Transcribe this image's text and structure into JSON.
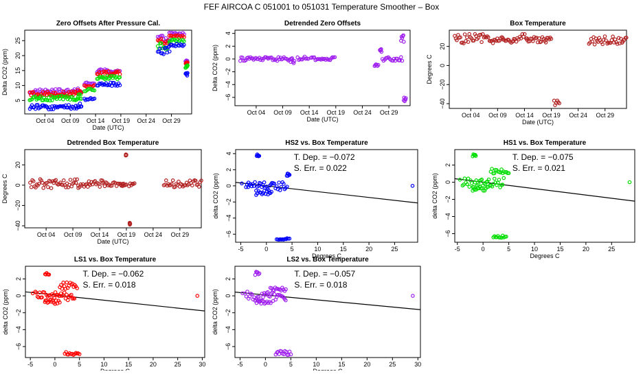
{
  "figure_title": "FEF   AIRCOA C   051001 to 051031   Temperature Smoother – Box",
  "chart_data": [
    {
      "id": "p1",
      "type": "scatter",
      "title": "Zero Offsets After Pressure Cal.",
      "xlabel": "Date (UTC)",
      "ylabel": "Delta CO2 (ppm)",
      "xlim": [
        0,
        33
      ],
      "ylim": [
        0.5,
        28.5
      ],
      "x_ticks": [
        4,
        9,
        14,
        19,
        24,
        29
      ],
      "x_tick_labels": [
        "Oct 04",
        "Oct 09",
        "Oct 14",
        "Oct 19",
        "Oct 24",
        "Oct 29"
      ],
      "y_ticks": [
        5,
        10,
        15,
        20,
        25
      ],
      "series": [
        {
          "name": "LS2",
          "color": "#a020f0",
          "segments": [
            [
              1,
              10.5,
              7.2,
              8.8
            ],
            [
              10.5,
              11.2,
              7.8,
              9.5
            ],
            [
              11.8,
              13.8,
              10.3,
              11
            ],
            [
              14.3,
              18.8,
              14.2,
              15.5
            ],
            [
              26.3,
              28.6,
              24.5,
              26.8
            ],
            [
              28.6,
              31.5,
              26.8,
              27.8
            ],
            [
              31.8,
              32.2,
              17.8,
              18.5
            ]
          ]
        },
        {
          "name": "LS1",
          "color": "#ff0000",
          "segments": [
            [
              1,
              10.5,
              6.5,
              8
            ],
            [
              10.5,
              11.2,
              7,
              8.6
            ],
            [
              11.8,
              13.8,
              9.5,
              10.3
            ],
            [
              14.3,
              18.8,
              13.3,
              14.8
            ],
            [
              26.3,
              28.6,
              23.5,
              25.8
            ],
            [
              28.6,
              31.5,
              25.8,
              26.8
            ],
            [
              31.8,
              32.2,
              17.2,
              17.8
            ]
          ]
        },
        {
          "name": "HS1",
          "color": "#00dd00",
          "segments": [
            [
              1,
              10.5,
              4.8,
              6.5
            ],
            [
              10.5,
              11.2,
              5.5,
              7.2
            ],
            [
              11.8,
              13.8,
              8,
              9
            ],
            [
              14.3,
              18.8,
              12,
              13.2
            ],
            [
              26.3,
              28.6,
              22,
              24.5
            ],
            [
              28.6,
              31.5,
              24.5,
              25.5
            ],
            [
              31.8,
              32.2,
              15.8,
              16.8
            ]
          ]
        },
        {
          "name": "HS2",
          "color": "#0000ff",
          "segments": [
            [
              1,
              10.5,
              2,
              3.5
            ],
            [
              10.5,
              11.2,
              2.5,
              4.2
            ],
            [
              11.8,
              13.8,
              5,
              6
            ],
            [
              14.3,
              18.8,
              9.8,
              11
            ],
            [
              26.3,
              28.6,
              20,
              23
            ],
            [
              28.6,
              31.5,
              23,
              24
            ],
            [
              31.8,
              32.2,
              13.2,
              14.2
            ]
          ]
        }
      ]
    },
    {
      "id": "p2",
      "type": "scatter",
      "title": "Detrended Zero Offsets",
      "xlabel": "Date (UTC)",
      "ylabel": "Delta CO2 (ppm)",
      "xlim": [
        0,
        33
      ],
      "ylim": [
        -7.3,
        4.5
      ],
      "x_ticks": [
        4,
        9,
        14,
        19,
        24,
        29
      ],
      "x_tick_labels": [
        "Oct 04",
        "Oct 09",
        "Oct 14",
        "Oct 19",
        "Oct 24",
        "Oct 29"
      ],
      "y_ticks": [
        -6,
        -4,
        -2,
        0,
        2,
        4
      ],
      "series": [
        {
          "name": "detrended",
          "color": "#a020f0",
          "segments": [
            [
              1,
              10.5,
              -0.3,
              0.3
            ],
            [
              10.5,
              11.2,
              -0.9,
              0.2
            ],
            [
              11.8,
              13.8,
              -0.3,
              0.5
            ],
            [
              14.3,
              18.8,
              -0.3,
              0.3
            ],
            [
              26.3,
              27,
              -1.2,
              -0.6
            ],
            [
              27.3,
              27.6,
              0.8,
              1.6
            ],
            [
              27.8,
              31.5,
              -0.3,
              0.3
            ],
            [
              31.3,
              31.8,
              2.5,
              3.8
            ],
            [
              31.8,
              32.2,
              -6.6,
              -6
            ]
          ]
        }
      ]
    },
    {
      "id": "p3",
      "type": "scatter",
      "title": "Box Temperature",
      "xlabel": "Date (UTC)",
      "ylabel": "Degrees C",
      "xlim": [
        0,
        33
      ],
      "ylim": [
        -45,
        37
      ],
      "x_ticks": [
        4,
        9,
        14,
        19,
        24,
        29
      ],
      "x_tick_labels": [
        "Oct 04",
        "Oct 09",
        "Oct 14",
        "Oct 19",
        "Oct 24",
        "Oct 29"
      ],
      "y_ticks": [
        -40,
        -20,
        0,
        20
      ],
      "series": [
        {
          "name": "box-temperature",
          "color": "#b22222",
          "segments": [
            [
              1,
              10,
              23,
              33
            ],
            [
              10,
              12,
              23,
              28
            ],
            [
              12,
              14.5,
              25,
              33
            ],
            [
              14.5,
              18,
              24,
              30
            ],
            [
              18,
              19,
              27,
              32
            ],
            [
              19.5,
              20.5,
              -42,
              -36
            ],
            [
              26,
              33,
              22,
              31
            ]
          ]
        }
      ]
    },
    {
      "id": "p4",
      "type": "scatter",
      "title": "Detrended Box Temperature",
      "xlabel": "Date (UTC)",
      "ylabel": "Degrees C",
      "xlim": [
        0,
        33
      ],
      "ylim": [
        -42,
        35
      ],
      "x_ticks": [
        4,
        9,
        14,
        19,
        24,
        29
      ],
      "x_tick_labels": [
        "Oct 04",
        "Oct 09",
        "Oct 14",
        "Oct 19",
        "Oct 24",
        "Oct 29"
      ],
      "y_ticks": [
        -40,
        -20,
        0,
        20
      ],
      "series": [
        {
          "name": "detrended-box-temperature",
          "color": "#b22222",
          "segments": [
            [
              1,
              10,
              -3,
              6
            ],
            [
              10,
              12,
              -2,
              2
            ],
            [
              12,
              14.5,
              -2,
              5
            ],
            [
              14.5,
              18.5,
              -1,
              3
            ],
            [
              18,
              19,
              -1,
              3
            ],
            [
              19.5,
              20.5,
              -2,
              2
            ],
            [
              26,
              33,
              -2,
              5
            ],
            [
              18.9,
              19,
              29,
              31
            ],
            [
              19.6,
              19.7,
              -39,
              -37
            ]
          ]
        }
      ]
    },
    {
      "id": "p5",
      "type": "scatter",
      "title": "HS2 vs. Box Temperature",
      "xlabel": "Degrees C",
      "ylabel": "delta CO2 (ppm)",
      "xlim": [
        -6,
        29.5
      ],
      "ylim": [
        -7,
        4.5
      ],
      "x_ticks": [
        -5,
        0,
        5,
        10,
        15,
        20,
        25
      ],
      "y_ticks": [
        -6,
        -4,
        -2,
        0,
        2,
        4
      ],
      "t_dep_label": "T. Dep. =",
      "t_dep": "−0.072",
      "s_err_label": "S. Err. =",
      "s_err": "0.022",
      "slope": -0.072,
      "intercept": 0,
      "series": [
        {
          "name": "HS2",
          "color": "#0000ff",
          "segments": [
            [
              -4,
              4,
              -0.6,
              0.5
            ],
            [
              -2,
              1,
              -1.2,
              -0.6
            ],
            [
              -1.9,
              -1.4,
              3.5,
              4
            ],
            [
              2,
              4.5,
              -6.7,
              -6.5
            ],
            [
              4,
              4.5,
              1.2,
              1.6
            ]
          ],
          "points": [
            [
              28.5,
              0
            ],
            [
              -4.8,
              0.3
            ],
            [
              -3.5,
              0.4
            ]
          ]
        }
      ]
    },
    {
      "id": "p6",
      "type": "scatter",
      "title": "HS1 vs. Box Temperature",
      "xlabel": "Degrees C",
      "ylabel": "delta CO2 (ppm)",
      "xlim": [
        -5.5,
        29.5
      ],
      "ylim": [
        -7,
        3.8
      ],
      "x_ticks": [
        -5,
        0,
        5,
        10,
        15,
        20,
        25
      ],
      "y_ticks": [
        -6,
        -4,
        -2,
        0,
        2
      ],
      "t_dep_label": "T. Dep. =",
      "t_dep": "−0.075",
      "s_err_label": "S. Err. =",
      "s_err": "0.021",
      "slope": -0.075,
      "intercept": 0,
      "series": [
        {
          "name": "HS1",
          "color": "#00dd00",
          "segments": [
            [
              -4,
              4,
              -0.6,
              0.5
            ],
            [
              -2,
              1,
              -1,
              -0.5
            ],
            [
              -2,
              -1.4,
              3,
              3.5
            ],
            [
              2,
              4.5,
              -6.5,
              -6.2
            ],
            [
              1.5,
              5,
              1,
              1.6
            ]
          ],
          "points": [
            [
              28.5,
              0
            ],
            [
              -4.5,
              0.3
            ]
          ]
        }
      ]
    },
    {
      "id": "p7",
      "type": "scatter",
      "title": "LS1 vs. Box Temperature",
      "xlabel": "Degrees C",
      "ylabel": "delta CO2 (ppm)",
      "xlim": [
        -6,
        30.5
      ],
      "ylim": [
        -7.3,
        3.5
      ],
      "x_ticks": [
        -5,
        0,
        5,
        10,
        15,
        20,
        25,
        30
      ],
      "y_ticks": [
        -6,
        -4,
        -2,
        0,
        2
      ],
      "t_dep_label": "T. Dep. =",
      "t_dep": "−0.062",
      "s_err_label": "S. Err. =",
      "s_err": "0.018",
      "slope": -0.062,
      "intercept": 0.1,
      "series": [
        {
          "name": "LS1",
          "color": "#ff0000",
          "segments": [
            [
              -4,
              4,
              -0.6,
              0.5
            ],
            [
              -2,
              1,
              -1,
              -0.5
            ],
            [
              -2,
              -1.2,
              2.5,
              2.8
            ],
            [
              2,
              5,
              -7,
              -6.6
            ],
            [
              1,
              4.5,
              0.8,
              1.6
            ]
          ],
          "points": [
            [
              29,
              0
            ],
            [
              -4.5,
              0.3
            ]
          ]
        }
      ]
    },
    {
      "id": "p8",
      "type": "scatter",
      "title": "LS2 vs. Box Temperature",
      "xlabel": "Degrees C",
      "ylabel": "delta CO2 (ppm)",
      "xlim": [
        -6,
        30.5
      ],
      "ylim": [
        -7.3,
        3.5
      ],
      "x_ticks": [
        -5,
        0,
        5,
        10,
        15,
        20,
        25,
        30
      ],
      "y_ticks": [
        -6,
        -4,
        -2,
        0,
        2
      ],
      "t_dep_label": "T. Dep. =",
      "t_dep": "−0.057",
      "s_err_label": "S. Err. =",
      "s_err": "0.018",
      "slope": -0.057,
      "intercept": 0.1,
      "series": [
        {
          "name": "LS2",
          "color": "#a020f0",
          "segments": [
            [
              -4,
              4,
              -0.6,
              0.5
            ],
            [
              -2,
              1,
              -1,
              -0.5
            ],
            [
              -2,
              -1.2,
              2.3,
              2.9
            ],
            [
              2,
              5,
              -7,
              -6.5
            ],
            [
              1,
              4,
              0.5,
              1
            ]
          ],
          "points": [
            [
              29,
              0
            ],
            [
              -4.5,
              0.3
            ]
          ]
        }
      ]
    }
  ]
}
